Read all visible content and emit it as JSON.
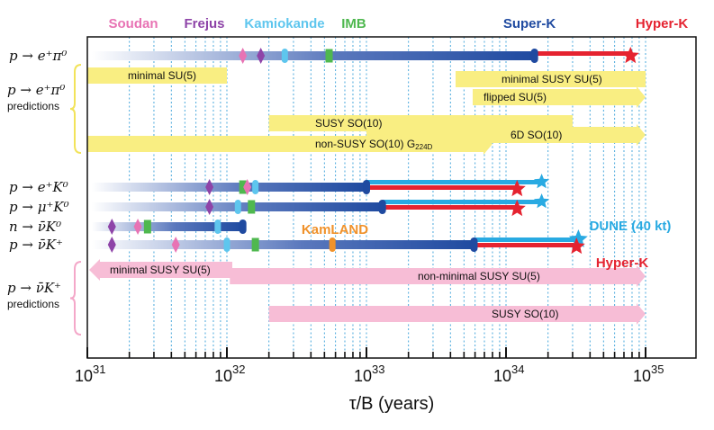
{
  "chart_data": {
    "type": "range-bar",
    "xlabel": "τ/B (years)",
    "xscale": "log",
    "xlim": [
      1e+31,
      1e+35
    ],
    "xticks": [
      {
        "value": 1e+31,
        "base": "10",
        "exp": "31"
      },
      {
        "value": 1e+32,
        "base": "10",
        "exp": "32"
      },
      {
        "value": 1e+33,
        "base": "10",
        "exp": "33"
      },
      {
        "value": 1e+34,
        "base": "10",
        "exp": "34"
      },
      {
        "value": 1e+35,
        "base": "10",
        "exp": "35"
      }
    ],
    "experiments": [
      {
        "name": "Soudan",
        "color": "#e873b4"
      },
      {
        "name": "Frejus",
        "color": "#8e44a8"
      },
      {
        "name": "Kamiokande",
        "color": "#5ec6ee"
      },
      {
        "name": "IMB",
        "color": "#4fb84f"
      },
      {
        "name": "Super-K",
        "color": "#1f4aa0"
      },
      {
        "name": "Hyper-K",
        "color": "#e52330"
      }
    ],
    "channels": [
      {
        "process": "p → e⁺π⁰",
        "superk_limit": 1.6e+34,
        "hyperk_sensitivity": 7.8e+34,
        "dune_sensitivity": null,
        "experiment_limits": [
          {
            "experiment": "Soudan",
            "value": 1.3e+32
          },
          {
            "experiment": "Frejus",
            "value": 1.75e+32
          },
          {
            "experiment": "Kamiokande",
            "value": 2.6e+32
          },
          {
            "experiment": "IMB",
            "value": 5.4e+32
          }
        ]
      },
      {
        "process": "p → e⁺K⁰",
        "superk_limit": 1e+33,
        "hyperk_sensitivity": 1.2e+34,
        "dune_sensitivity": 1.8e+34,
        "experiment_limits": [
          {
            "experiment": "Frejus",
            "value": 7.5e+31
          },
          {
            "experiment": "IMB",
            "value": 1.3e+32
          },
          {
            "experiment": "Soudan",
            "value": 1.4e+32
          },
          {
            "experiment": "Kamiokande",
            "value": 1.6e+32
          }
        ]
      },
      {
        "process": "p → μ⁺K⁰",
        "superk_limit": 1.3e+33,
        "hyperk_sensitivity": 1.2e+34,
        "dune_sensitivity": 1.8e+34,
        "experiment_limits": [
          {
            "experiment": "Frejus",
            "value": 7.5e+31
          },
          {
            "experiment": "Kamiokande",
            "value": 1.2e+32
          },
          {
            "experiment": "IMB",
            "value": 1.5e+32
          }
        ]
      },
      {
        "process": "n → ν̄K⁰",
        "superk_limit": 1.3e+32,
        "hyperk_sensitivity": null,
        "dune_sensitivity": null,
        "experiment_limits": [
          {
            "experiment": "Frejus",
            "value": 1.5e+31
          },
          {
            "experiment": "Soudan",
            "value": 2.3e+31
          },
          {
            "experiment": "IMB",
            "value": 2.7e+31
          },
          {
            "experiment": "Kamiokande",
            "value": 8.6e+31
          }
        ]
      },
      {
        "process": "p → ν̄K⁺",
        "superk_limit": 5.9e+33,
        "hyperk_sensitivity": 3.2e+34,
        "dune_sensitivity": 3.3e+34,
        "experiment_limits": [
          {
            "experiment": "Frejus",
            "value": 1.5e+31
          },
          {
            "experiment": "Soudan",
            "value": 4.3e+31
          },
          {
            "experiment": "Kamiokande",
            "value": 1e+32
          },
          {
            "experiment": "IMB",
            "value": 1.6e+32
          },
          {
            "experiment": "KamLAND",
            "value": 5.7e+32
          }
        ]
      }
    ],
    "prediction_groups": [
      {
        "label": "p → e⁺π⁰",
        "sublabel": "predictions",
        "color": "#f9ee82",
        "models": [
          {
            "name": "minimal SU(5)",
            "subscript": "",
            "range": [
              1e+31,
              1e+32
            ],
            "arrow": false
          },
          {
            "name": "minimal SUSY SU(5)",
            "subscript": "",
            "range": [
              6e+33,
              1e+35
            ],
            "arrow": false
          },
          {
            "name": "flipped SU(5)",
            "subscript": "",
            "range": [
              8e+33,
              1e+35
            ],
            "arrow": true
          },
          {
            "name": "SUSY SO(10)",
            "subscript": "",
            "range": [
              2e+32,
              3e+34
            ],
            "arrow": false
          },
          {
            "name": "6D SO(10)",
            "subscript": "",
            "range": [
              1e+33,
              1e+35
            ],
            "arrow": true
          },
          {
            "name": "non-SUSY SO(10) G",
            "subscript": "224D",
            "range": [
              1e+31,
              8e+33
            ],
            "arrow": true
          }
        ]
      },
      {
        "label": "p → ν̄K⁺",
        "sublabel": "predictions",
        "color": "#f7bdd6",
        "models": [
          {
            "name": "minimal SUSY SU(5)",
            "subscript": "",
            "range": [
              1e+31,
              1e+32
            ],
            "arrow": true
          },
          {
            "name": "non-minimal SUSY SU(5)",
            "subscript": "",
            "range": [
              1.05e+32,
              1e+35
            ],
            "arrow": true
          },
          {
            "name": "SUSY SO(10)",
            "subscript": "",
            "range": [
              2e+32,
              1e+35
            ],
            "arrow": true
          }
        ]
      }
    ],
    "annotations": [
      {
        "text": "KamLAND",
        "color": "#f0922b"
      },
      {
        "text": "DUNE (40 kt)",
        "color": "#29aae2"
      },
      {
        "text": "Hyper-K",
        "color": "#e52330"
      }
    ],
    "grid": true
  }
}
